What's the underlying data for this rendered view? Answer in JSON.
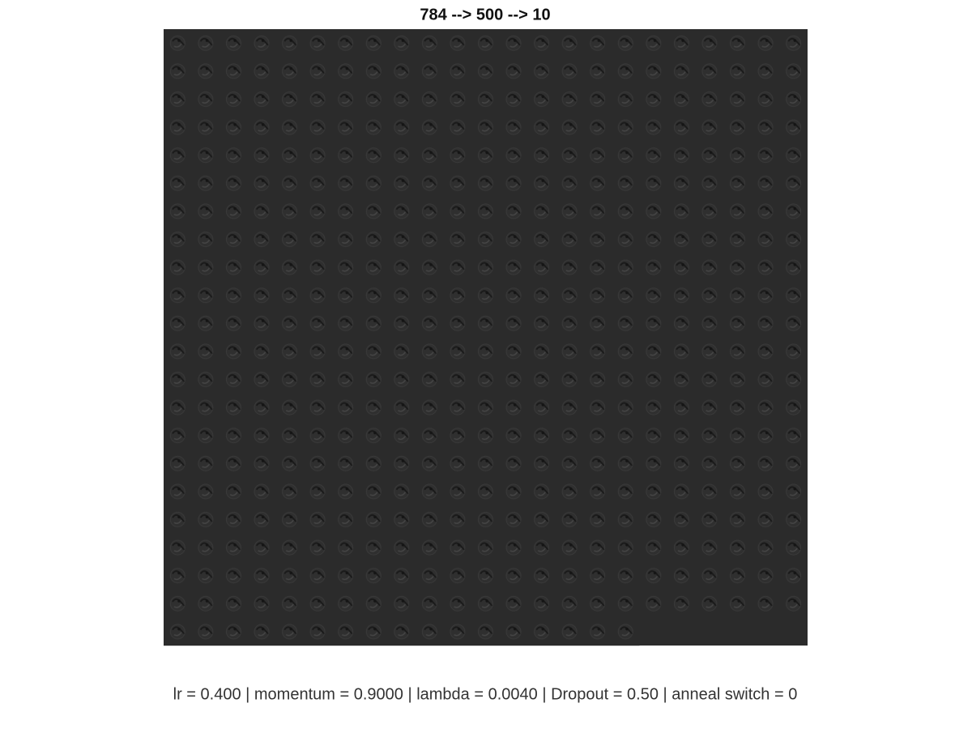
{
  "title": "784 --> 500 --> 10",
  "footer": "lr = 0.400 | momentum = 0.9000 | lambda = 0.0040 | Dropout = 0.50 | anneal switch = 0"
}
